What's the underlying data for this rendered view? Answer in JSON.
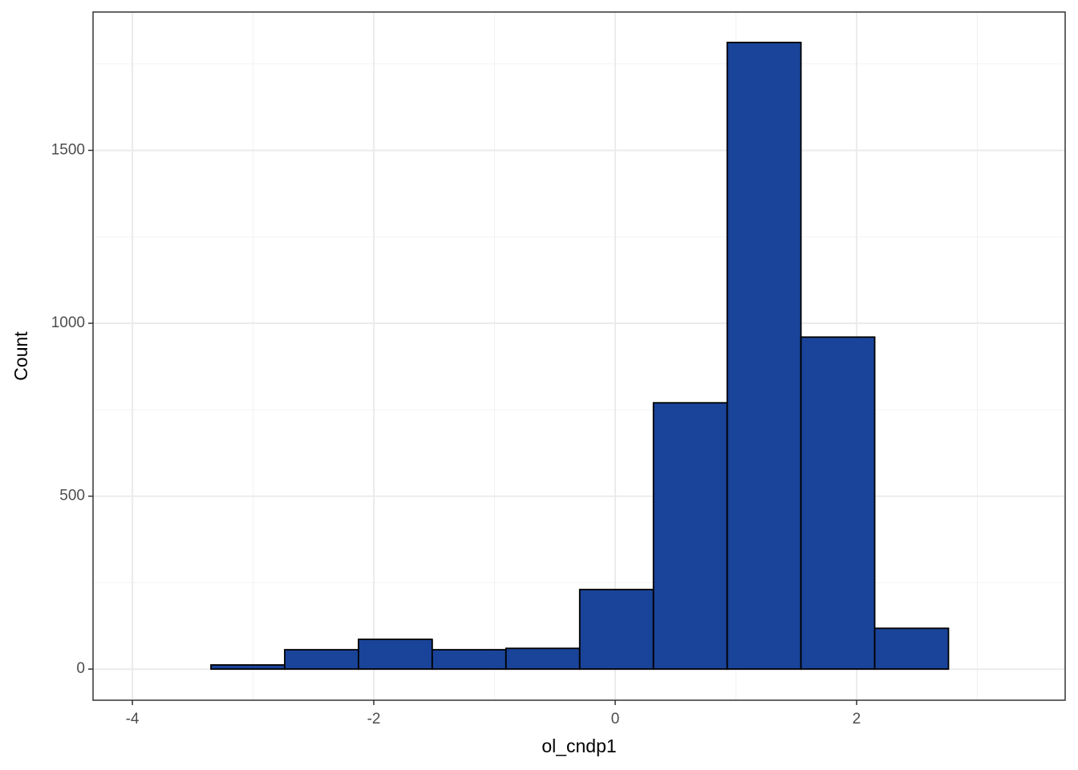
{
  "chart_data": {
    "type": "histogram",
    "x_label": "ol_cndp1",
    "y_label": "Count",
    "bins": [
      -3.96,
      -3.349,
      -2.738,
      -2.127,
      -1.516,
      -0.905,
      -0.294,
      0.317,
      0.928,
      1.539,
      2.15,
      2.761,
      3.372
    ],
    "values": [
      0,
      12,
      56,
      86,
      56,
      60,
      230,
      770,
      1812,
      960,
      118,
      0
    ],
    "color": "#1a4499",
    "edge_color": "#000000",
    "xlim": [
      -4.326,
      3.728
    ],
    "xticks": [
      -4,
      -2,
      0,
      2
    ],
    "ylim": [
      -90,
      1900
    ],
    "yticks": [
      0,
      500,
      1000,
      1500
    ],
    "grid": true
  }
}
